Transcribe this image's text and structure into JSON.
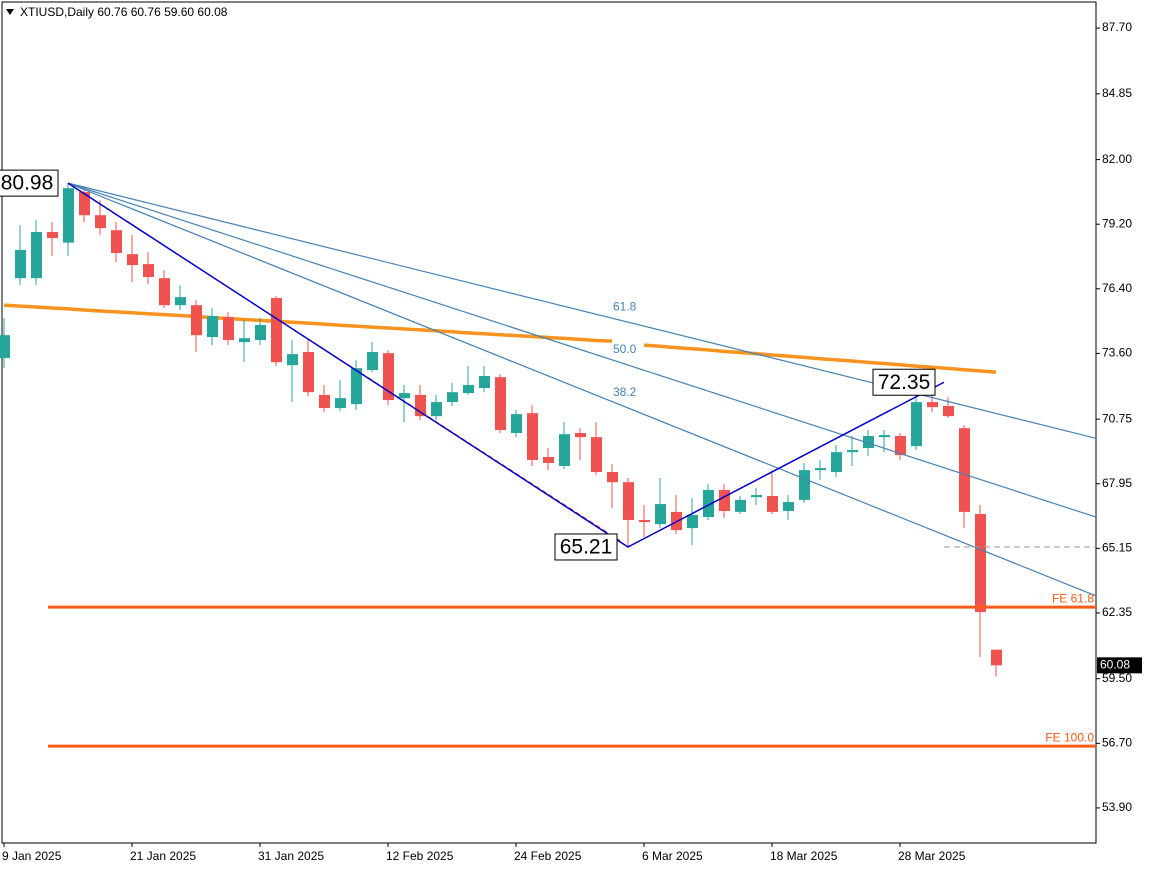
{
  "chart_data": {
    "type": "candlestick",
    "title": "XTIUSD,Daily  60.76 60.76 59.60 60.08",
    "categories": [
      "9 Jan 2025",
      null,
      null,
      null,
      null,
      null,
      null,
      null,
      "21 Jan 2025",
      null,
      null,
      null,
      null,
      null,
      null,
      null,
      "31 Jan 2025",
      null,
      null,
      null,
      null,
      null,
      null,
      null,
      "12 Feb 2025",
      null,
      null,
      null,
      null,
      null,
      null,
      null,
      "24 Feb 2025",
      null,
      null,
      null,
      null,
      null,
      null,
      null,
      "6 Mar 2025",
      null,
      null,
      null,
      null,
      null,
      null,
      null,
      "18 Mar 2025",
      null,
      null,
      null,
      null,
      null,
      null,
      null,
      "28 Mar 2025",
      null,
      null,
      null,
      null,
      null,
      null
    ],
    "open": [
      73.4,
      76.86,
      76.86,
      78.86,
      78.4,
      80.59,
      79.59,
      78.94,
      77.9,
      77.47,
      76.86,
      75.69,
      75.69,
      74.31,
      75.17,
      74.09,
      74.18,
      76.0,
      73.09,
      73.66,
      71.8,
      71.23,
      71.4,
      72.88,
      73.61,
      71.66,
      71.8,
      70.88,
      71.49,
      71.88,
      72.1,
      72.57,
      70.15,
      71.01,
      69.11,
      68.72,
      70.15,
      69.97,
      68.46,
      68.02,
      66.38,
      66.2,
      66.73,
      66.03,
      66.51,
      67.68,
      66.73,
      67.37,
      67.42,
      66.77,
      67.25,
      68.54,
      68.46,
      69.32,
      69.5,
      69.97,
      70.02,
      69.58,
      71.49,
      71.32,
      70.36,
      66.64,
      60.76
    ],
    "high": [
      75.13,
      79.16,
      79.38,
      79.29,
      80.98,
      80.85,
      80.24,
      79.29,
      78.73,
      77.99,
      77.21,
      76.56,
      75.91,
      75.56,
      75.39,
      75.04,
      75.13,
      76.08,
      74.18,
      74.18,
      72.23,
      72.44,
      73.31,
      74.09,
      73.74,
      72.23,
      72.23,
      71.8,
      72.31,
      73.05,
      73.05,
      72.7,
      71.14,
      71.36,
      69.5,
      70.62,
      70.36,
      70.62,
      68.8,
      68.2,
      67.03,
      68.2,
      67.46,
      67.33,
      67.94,
      67.94,
      67.42,
      67.76,
      68.54,
      67.46,
      68.85,
      68.98,
      69.63,
      70.02,
      70.28,
      70.28,
      70.15,
      71.8,
      72.35,
      71.71,
      70.49,
      67.03,
      60.76
    ],
    "low": [
      72.96,
      76.56,
      76.56,
      77.82,
      77.82,
      79.29,
      78.73,
      77.56,
      76.69,
      76.6,
      75.56,
      75.48,
      73.66,
      73.96,
      73.96,
      73.22,
      73.96,
      73.05,
      71.49,
      71.75,
      71.06,
      71.1,
      71.14,
      72.79,
      71.36,
      70.62,
      70.71,
      70.71,
      71.32,
      71.8,
      71.92,
      70.15,
      69.97,
      68.72,
      68.54,
      68.59,
      68.98,
      68.33,
      66.9,
      65.21,
      65.64,
      66.03,
      65.77,
      65.3,
      66.38,
      66.47,
      66.64,
      67.03,
      66.64,
      66.38,
      67.12,
      68.11,
      68.24,
      68.72,
      69.15,
      69.32,
      68.98,
      69.41,
      71.06,
      70.8,
      66.03,
      60.44,
      59.6
    ],
    "close": [
      74.39,
      78.08,
      78.86,
      78.6,
      80.76,
      79.59,
      79.03,
      77.95,
      77.43,
      76.91,
      75.69,
      76.04,
      74.39,
      75.22,
      74.18,
      74.26,
      74.83,
      73.22,
      73.57,
      71.92,
      71.23,
      71.66,
      72.96,
      73.66,
      71.58,
      71.88,
      70.88,
      71.49,
      71.92,
      72.23,
      72.62,
      70.28,
      70.97,
      68.98,
      68.85,
      70.1,
      69.97,
      68.46,
      68.02,
      66.38,
      66.29,
      67.07,
      65.94,
      66.6,
      67.68,
      66.77,
      67.25,
      67.46,
      66.73,
      67.16,
      68.54,
      68.63,
      69.32,
      69.41,
      70.02,
      70.06,
      69.19,
      71.49,
      71.27,
      70.88,
      66.73,
      62.39,
      60.08
    ],
    "up_color": "#26a69a",
    "down_color": "#ef5350",
    "ylim": [
      52.38,
      88.83
    ],
    "yticks": [
      {
        "value": 87.7,
        "label": "87.70"
      },
      84.85,
      {
        "value": 82,
        "label": "82.00"
      },
      {
        "value": 79.2,
        "label": "79.20"
      },
      {
        "value": 76.4,
        "label": "76.40"
      },
      {
        "value": 73.6,
        "label": "73.60"
      },
      70.75,
      67.95,
      65.15,
      62.35,
      {
        "value": 59.5,
        "label": "59.50"
      },
      {
        "value": 56.7,
        "label": "56.70"
      },
      {
        "value": 53.9,
        "label": "53.90"
      }
    ],
    "moving_average": {
      "color": "#f7931e",
      "values": [
        75.69,
        75.65,
        75.61,
        75.57,
        75.53,
        75.48,
        75.44,
        75.4,
        75.36,
        75.32,
        75.28,
        75.24,
        75.2,
        75.15,
        75.11,
        75.07,
        75.03,
        74.99,
        74.95,
        74.91,
        74.87,
        74.82,
        74.78,
        74.74,
        74.7,
        74.66,
        74.62,
        74.58,
        74.54,
        74.49,
        74.45,
        74.41,
        74.37,
        74.33,
        74.29,
        74.25,
        74.21,
        74.16,
        74.13,
        null,
        73.96,
        73.91,
        73.85,
        73.8,
        73.75,
        73.69,
        73.64,
        73.59,
        73.53,
        73.48,
        73.43,
        73.37,
        73.32,
        73.27,
        73.21,
        73.16,
        73.11,
        73.05,
        73.0,
        72.95,
        72.89,
        72.84,
        72.79
      ]
    },
    "swing_points": {
      "color": "#0000cd",
      "high_index": 4,
      "low_index": 39,
      "end_index": 58
    },
    "fib_fan": {
      "color": "#4682b4",
      "levels": [
        61.8,
        {
          "value": 50,
          "label": "50.0"
        },
        38.2
      ]
    },
    "fib_expansion": {
      "color": "#ff5a1a",
      "levels": [
        {
          "value": 61.8,
          "label": "FE 61.8"
        },
        {
          "value": 100,
          "label": "FE 100.0"
        }
      ]
    }
  }
}
